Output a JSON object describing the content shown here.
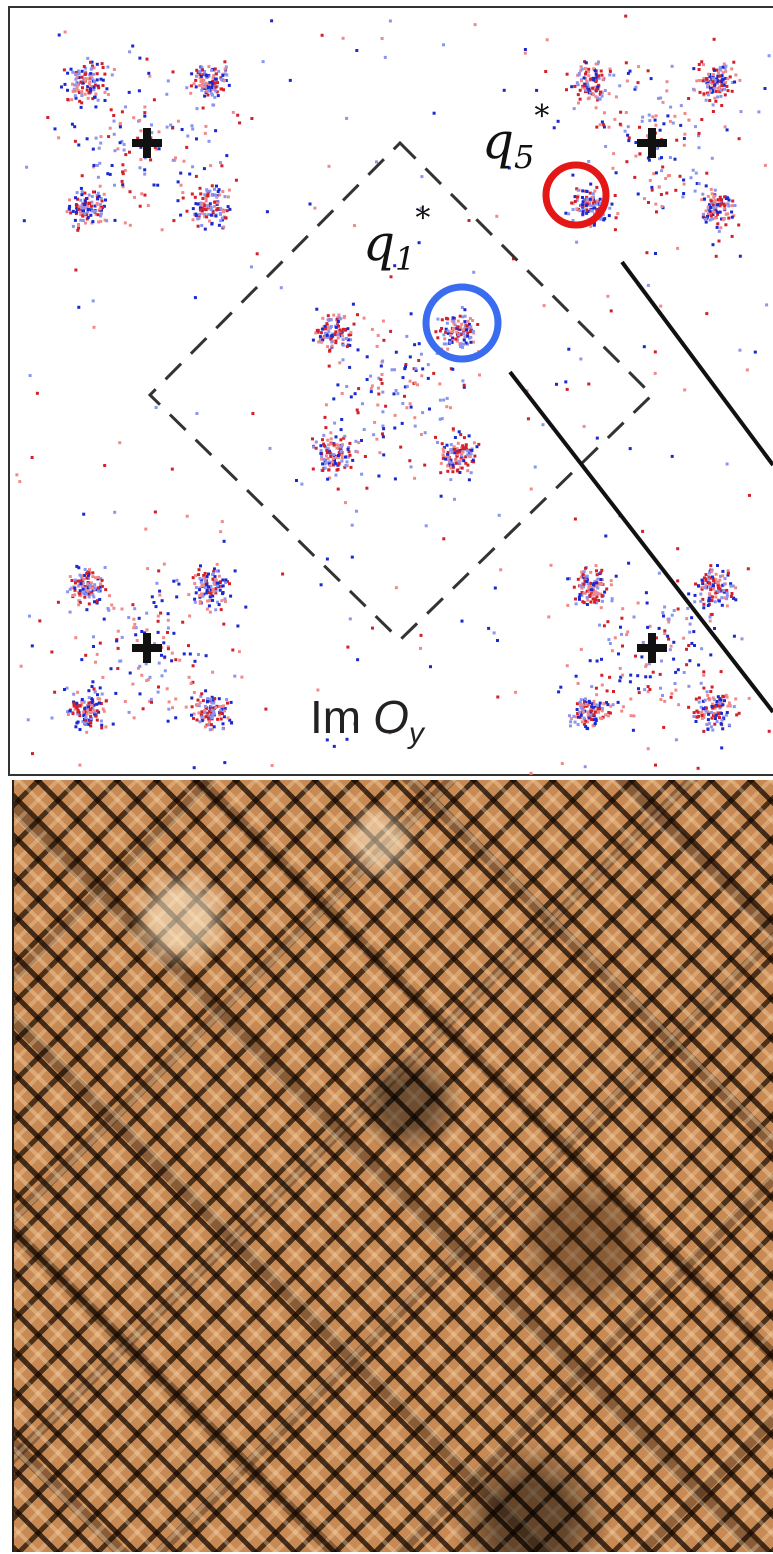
{
  "labels": [
    {
      "base": "q",
      "sub": "5",
      "sup": "*"
    },
    {
      "base": "q",
      "sub": "1",
      "sup": "*"
    }
  ],
  "panel_label": {
    "prefix": "Im",
    "symbol": "O",
    "sub": "y"
  }
}
